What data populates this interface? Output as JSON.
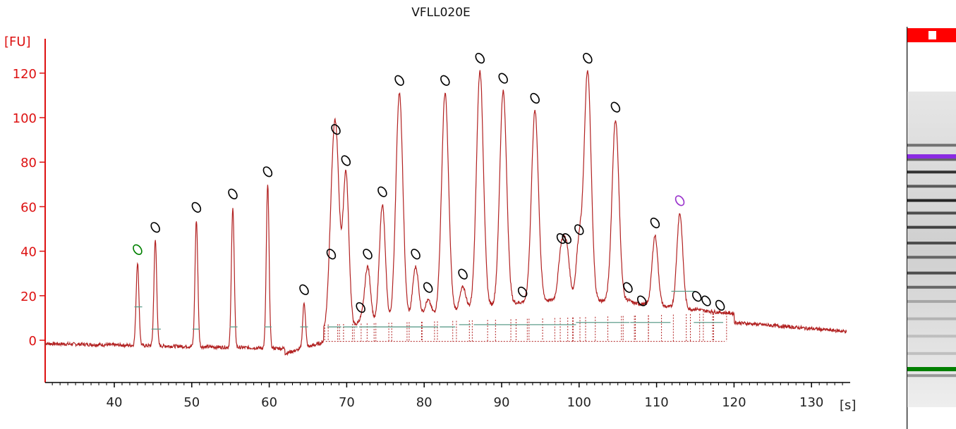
{
  "chart_data": {
    "type": "line",
    "title": "VFLL020E",
    "ylabel": "[FU]",
    "xlabel": "[s]",
    "xlim": [
      31,
      135
    ],
    "ylim": [
      -19,
      135
    ],
    "x_ticks": [
      40,
      50,
      60,
      70,
      80,
      90,
      100,
      110,
      120,
      130
    ],
    "y_ticks": [
      0,
      20,
      40,
      60,
      80,
      100,
      120
    ],
    "grid": false,
    "colors": {
      "trace": "#b22222",
      "axis": "#dd1111",
      "baseline": "#5f9e8c",
      "marker": "#000000",
      "lower_marker": "#008000",
      "upper_marker": "#9932cc"
    },
    "baseline_level": -2,
    "peaks": [
      {
        "x": 43.0,
        "y": 35,
        "kind": "lower_marker"
      },
      {
        "x": 45.3,
        "y": 45
      },
      {
        "x": 50.6,
        "y": 54
      },
      {
        "x": 55.3,
        "y": 60
      },
      {
        "x": 59.8,
        "y": 70
      },
      {
        "x": 64.5,
        "y": 17
      },
      {
        "x": 68.0,
        "y": 33
      },
      {
        "x": 68.6,
        "y": 89
      },
      {
        "x": 69.9,
        "y": 75
      },
      {
        "x": 71.8,
        "y": 9
      },
      {
        "x": 72.7,
        "y": 33
      },
      {
        "x": 74.6,
        "y": 61
      },
      {
        "x": 76.8,
        "y": 111
      },
      {
        "x": 78.9,
        "y": 33
      },
      {
        "x": 80.5,
        "y": 18
      },
      {
        "x": 82.7,
        "y": 111
      },
      {
        "x": 85.0,
        "y": 24
      },
      {
        "x": 87.2,
        "y": 121
      },
      {
        "x": 90.2,
        "y": 112
      },
      {
        "x": 92.7,
        "y": 16
      },
      {
        "x": 94.3,
        "y": 103
      },
      {
        "x": 97.7,
        "y": 40
      },
      {
        "x": 98.4,
        "y": 40
      },
      {
        "x": 100.0,
        "y": 44
      },
      {
        "x": 101.1,
        "y": 121
      },
      {
        "x": 104.7,
        "y": 99
      },
      {
        "x": 106.3,
        "y": 18
      },
      {
        "x": 108.1,
        "y": 12
      },
      {
        "x": 109.8,
        "y": 47
      },
      {
        "x": 113.0,
        "y": 57,
        "kind": "upper_marker"
      },
      {
        "x": 115.2,
        "y": 14
      },
      {
        "x": 116.4,
        "y": 12
      },
      {
        "x": 118.2,
        "y": 10
      }
    ],
    "baseline_segments": [
      {
        "x": [
          42.6,
          43.6
        ],
        "y": 15
      },
      {
        "x": [
          44.8,
          46.0
        ],
        "y": 5
      },
      {
        "x": [
          50.1,
          51.0
        ],
        "y": 5
      },
      {
        "x": [
          54.9,
          55.9
        ],
        "y": 6
      },
      {
        "x": [
          59.4,
          60.3
        ],
        "y": 6
      },
      {
        "x": [
          64.0,
          65.0
        ],
        "y": 6
      },
      {
        "x": [
          67.5,
          69.3
        ],
        "y": 6
      },
      {
        "x": [
          69.5,
          71.4
        ],
        "y": 6
      },
      {
        "x": [
          71.6,
          81.8
        ],
        "y": 6
      },
      {
        "x": [
          82.0,
          84.0
        ],
        "y": 6
      },
      {
        "x": [
          84.5,
          86.0
        ],
        "y": 7
      },
      {
        "x": [
          86.4,
          93.5
        ],
        "y": 7
      },
      {
        "x": [
          93.6,
          99.6
        ],
        "y": 7
      },
      {
        "x": [
          99.6,
          106.5
        ],
        "y": 8
      },
      {
        "x": [
          106.6,
          111.8
        ],
        "y": 8
      },
      {
        "x": [
          111.9,
          115.0
        ],
        "y": 22
      },
      {
        "x": [
          114.8,
          118.6
        ],
        "y": 8
      }
    ]
  },
  "gel_lane": {
    "top_marker_color": "#ff0000",
    "upper_marker_band_color": "#8a2be2",
    "lower_marker_band_color": "#008000",
    "bands": [
      {
        "position": 0.17,
        "intensity": 0.55
      },
      {
        "position": 0.215,
        "intensity": 0.6
      },
      {
        "position": 0.255,
        "intensity": 0.8
      },
      {
        "position": 0.3,
        "intensity": 0.65
      },
      {
        "position": 0.345,
        "intensity": 0.85
      },
      {
        "position": 0.385,
        "intensity": 0.7
      },
      {
        "position": 0.43,
        "intensity": 0.75
      },
      {
        "position": 0.48,
        "intensity": 0.7
      },
      {
        "position": 0.525,
        "intensity": 0.6
      },
      {
        "position": 0.575,
        "intensity": 0.7
      },
      {
        "position": 0.62,
        "intensity": 0.6
      },
      {
        "position": 0.665,
        "intensity": 0.35
      },
      {
        "position": 0.72,
        "intensity": 0.3
      },
      {
        "position": 0.775,
        "intensity": 0.25
      },
      {
        "position": 0.83,
        "intensity": 0.25
      },
      {
        "position": 0.9,
        "intensity": 0.4
      }
    ]
  }
}
